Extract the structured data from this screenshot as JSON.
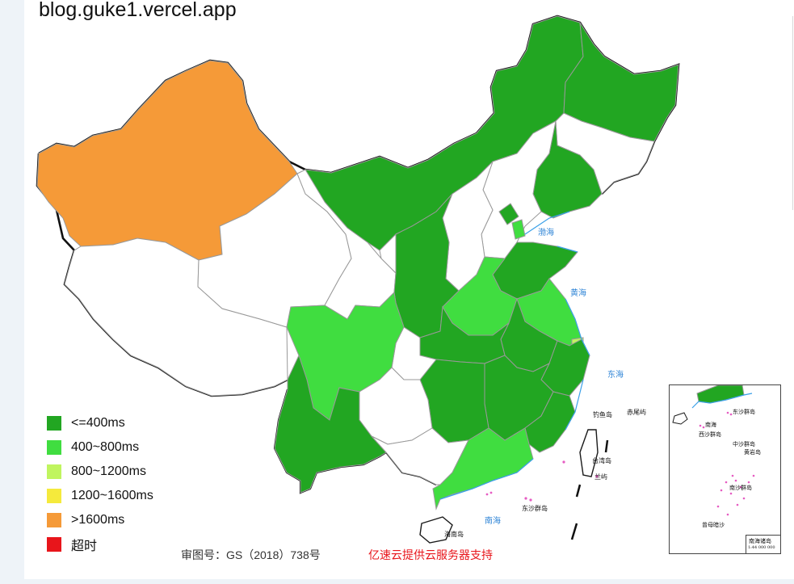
{
  "title": "blog.guke1.vercel.app",
  "legend": [
    {
      "label": "<=400ms",
      "color": "#22a622"
    },
    {
      "label": "400~800ms",
      "color": "#40dd40"
    },
    {
      "label": "800~1200ms",
      "color": "#c0f55f"
    },
    {
      "label": "1200~1600ms",
      "color": "#f5ea3c"
    },
    {
      "label": ">1600ms",
      "color": "#f59a38"
    },
    {
      "label": "超时",
      "color": "#e8151b"
    }
  ],
  "footer": {
    "approval": "审图号：GS（2018）738号",
    "support": "亿速云提供云服务器支持"
  },
  "map_labels": {
    "bohai": "渤海",
    "huanghai": "黄海",
    "donghai": "东海",
    "nanhai": "南海",
    "diaoyudao": "钓鱼岛",
    "chiweiyu": "赤尾屿",
    "taiwan": "台湾岛",
    "lanyu": "兰屿",
    "hainan": "海南岛",
    "dongsha": "东沙群岛"
  },
  "inset_labels": {
    "dongsha": "东沙群岛",
    "xisha": "西沙群岛",
    "nanhai": "南海",
    "zhongsha": "中沙群岛",
    "huangyan": "黄岩岛",
    "nansha": "南沙群岛",
    "zengmu": "曾母暗沙",
    "scale_title": "南海诸岛",
    "scale": "1:44 000 000"
  }
}
